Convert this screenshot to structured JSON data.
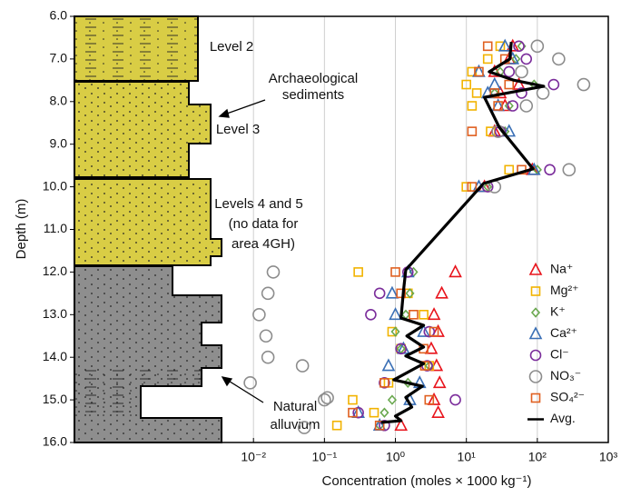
{
  "chart_data": {
    "type": "scatter",
    "x_label": "Concentration (moles × 1000 kg⁻¹)",
    "y_label": "Depth (m)",
    "x_log": true,
    "y_inverted": true,
    "grid": true,
    "legend": "lower right",
    "xlim": [
      3e-05,
      1000
    ],
    "ylim": [
      6,
      16
    ],
    "xticks": [
      {
        "value": 0.01,
        "label": "10⁻²"
      },
      {
        "value": 0.1,
        "label": "10⁻¹"
      },
      {
        "value": 1,
        "label": "10⁰"
      },
      {
        "value": 10,
        "label": "10¹"
      },
      {
        "value": 100,
        "label": "10²"
      },
      {
        "value": 1000,
        "label": "10³"
      }
    ],
    "yticks": [
      {
        "value": 6,
        "label": "6.0"
      },
      {
        "value": 7,
        "label": "7.0"
      },
      {
        "value": 8,
        "label": "8.0"
      },
      {
        "value": 9,
        "label": "9.0"
      },
      {
        "value": 10,
        "label": "10.0"
      },
      {
        "value": 11,
        "label": "11.0"
      },
      {
        "value": 12,
        "label": "12.0"
      },
      {
        "value": 13,
        "label": "13.0"
      },
      {
        "value": 14,
        "label": "14.0"
      },
      {
        "value": 15,
        "label": "15.0"
      },
      {
        "value": 16,
        "label": "16.0"
      }
    ],
    "annotations": [
      "Level 2",
      "Archaeological",
      "sediments",
      "Level 3",
      "Levels 4 and 5",
      "(no data for",
      "area 4GH)",
      "Natural",
      "alluvium"
    ],
    "series": [
      {
        "name": "Na⁺",
        "color": "#e8141c",
        "marker": "triangle",
        "x": [
          45,
          40,
          25,
          55,
          30,
          35,
          25,
          85,
          18,
          7,
          4.5,
          3.5,
          4,
          3.2,
          3.8,
          4.2,
          3.5,
          4,
          1.2
        ],
        "y": [
          6.7,
          7.0,
          7.3,
          7.6,
          7.8,
          8.1,
          8.7,
          9.6,
          10.0,
          12.0,
          12.5,
          13.0,
          13.4,
          13.8,
          14.2,
          14.6,
          15.0,
          15.3,
          15.6
        ]
      },
      {
        "name": "Mg²⁺",
        "color": "#f2b300",
        "marker": "square",
        "x": [
          30,
          20,
          12,
          10,
          14,
          12,
          22,
          40,
          10,
          0.3,
          1.5,
          2.5,
          0.9,
          1.2,
          3,
          0.8,
          0.25,
          0.5,
          0.15
        ],
        "y": [
          6.7,
          7.0,
          7.3,
          7.6,
          7.8,
          8.1,
          8.7,
          9.6,
          10.0,
          12.0,
          12.5,
          13.0,
          13.4,
          13.8,
          14.2,
          14.6,
          15.0,
          15.3,
          15.6
        ]
      },
      {
        "name": "K⁺",
        "color": "#6aa84f",
        "marker": "diamond",
        "x": [
          60,
          50,
          30,
          90,
          25,
          40,
          35,
          100,
          20,
          1.8,
          1.6,
          1.4,
          1.0,
          1.2,
          3,
          1.5,
          0.9,
          0.7,
          0.6
        ],
        "y": [
          6.7,
          7.0,
          7.3,
          7.6,
          7.8,
          8.1,
          8.7,
          9.6,
          10.0,
          12.0,
          12.5,
          13.0,
          13.4,
          13.8,
          14.2,
          14.6,
          15.0,
          15.3,
          15.6
        ]
      },
      {
        "name": "Ca²⁺",
        "color": "#3a6fb5",
        "marker": "triangle",
        "x": [
          35,
          45,
          15,
          25,
          20,
          28,
          40,
          90,
          15,
          1.5,
          0.9,
          1.0,
          2.5,
          1.3,
          0.8,
          2.2,
          1.6,
          0.3,
          0.6
        ],
        "y": [
          6.7,
          7.0,
          7.3,
          7.6,
          7.8,
          8.1,
          8.7,
          9.6,
          10.0,
          12.0,
          12.5,
          13.0,
          13.4,
          13.8,
          14.2,
          14.6,
          15.0,
          15.3,
          15.6
        ]
      },
      {
        "name": "Cl⁻",
        "color": "#7b2d9b",
        "marker": "circle",
        "x": [
          55,
          70,
          40,
          170,
          60,
          45,
          30,
          150,
          20,
          1.5,
          0.6,
          0.45,
          3,
          1.2,
          2.8,
          0.7,
          7,
          0.3,
          0.7
        ],
        "y": [
          6.7,
          7.0,
          7.3,
          7.6,
          7.8,
          8.1,
          8.7,
          9.6,
          10.0,
          12.0,
          12.5,
          13.0,
          13.4,
          13.8,
          14.2,
          14.6,
          15.0,
          15.3,
          15.6
        ]
      },
      {
        "name": "NO₃⁻",
        "color": "#8c8c8c",
        "marker": "bigcircle",
        "x": [
          100,
          200,
          60,
          450,
          120,
          70,
          28,
          280,
          25,
          0.019,
          0.016,
          0.012,
          0.015,
          0.016,
          0.049,
          0.009,
          0.11,
          0.1,
          0.052
        ],
        "y": [
          6.7,
          7.0,
          7.3,
          7.6,
          7.8,
          8.1,
          8.7,
          9.6,
          10.0,
          12.0,
          12.5,
          13.0,
          13.5,
          14.0,
          14.2,
          14.6,
          14.95,
          15.0,
          15.65
        ]
      },
      {
        "name": "SO₄²⁻",
        "color": "#e06020",
        "marker": "square",
        "x": [
          20,
          35,
          15,
          40,
          25,
          28,
          12,
          60,
          12,
          1.0,
          1.2,
          1.8,
          3.5,
          2.5,
          2.6,
          0.7,
          3,
          0.25,
          0.6
        ],
        "y": [
          6.7,
          7.0,
          7.3,
          7.6,
          7.8,
          8.1,
          8.7,
          9.6,
          10.0,
          12.0,
          12.5,
          13.0,
          13.4,
          13.8,
          14.2,
          14.6,
          15.0,
          15.3,
          15.6
        ]
      },
      {
        "name": "Avg.",
        "color": "#000000",
        "marker": "line",
        "x": [
          43,
          41,
          21,
          47,
          123,
          18,
          29,
          87,
          17.5,
          1.4,
          1.3,
          1.2,
          2.5,
          1.45,
          2.5,
          1.4,
          2.5,
          0.95,
          2.4,
          1.4,
          1.7,
          1.0,
          1.2,
          0.63
        ],
        "y": [
          6.6,
          7.0,
          7.3,
          7.5,
          7.64,
          7.9,
          8.6,
          9.58,
          9.92,
          11.95,
          12.44,
          13.08,
          13.25,
          13.5,
          13.76,
          13.97,
          14.15,
          14.53,
          14.68,
          14.94,
          15.17,
          15.38,
          15.49,
          15.53
        ]
      }
    ]
  }
}
